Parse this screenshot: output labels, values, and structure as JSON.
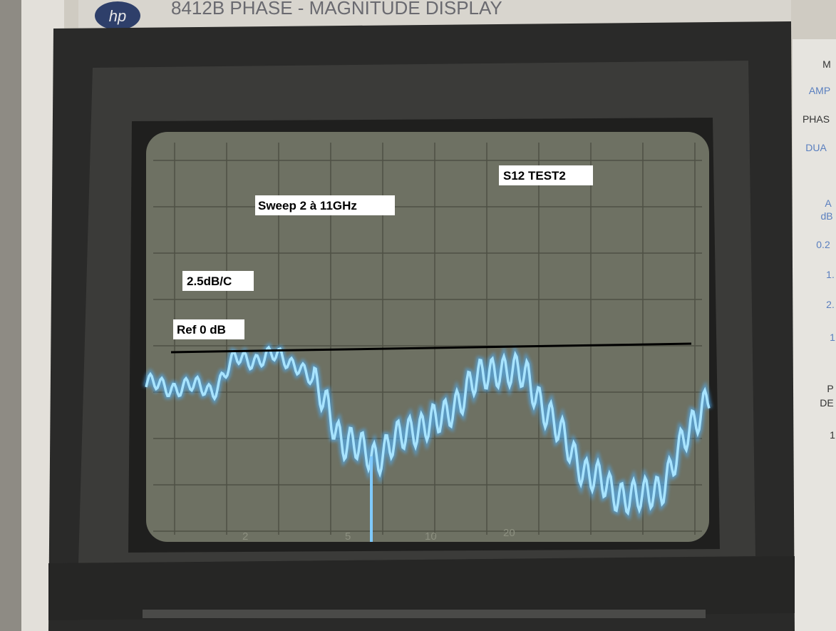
{
  "brand": "hp",
  "header": "8412B PHASE - MAGNITUDE DISPLAY",
  "annotations": {
    "title": "S12 TEST2",
    "sweep": "Sweep 2 à 11GHz",
    "scale": "2.5dB/C",
    "reference": "Ref 0 dB"
  },
  "screen_scale": [
    "2",
    "5",
    "10",
    "20"
  ],
  "side_panel": [
    "M",
    "AMP",
    "PHAS",
    "DUA",
    "A",
    "dB",
    "0.2",
    "1.",
    "2.",
    "1",
    "P",
    "DE",
    "1"
  ]
}
